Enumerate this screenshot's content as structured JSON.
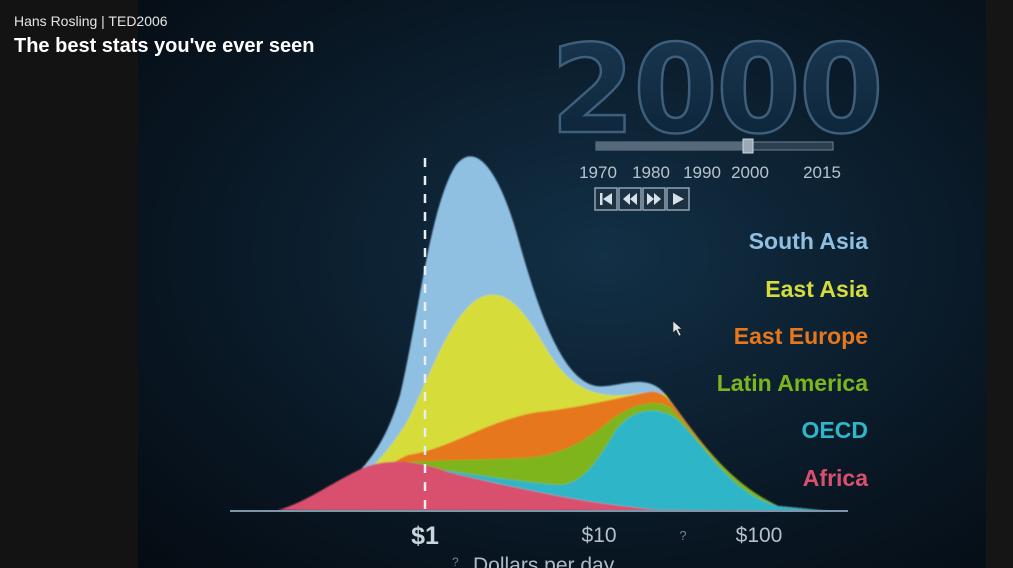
{
  "video": {
    "author_line": "Hans Rosling | TED2006",
    "title": "The best stats you've ever seen"
  },
  "chart": {
    "year": "2000",
    "timeline": {
      "ticks": [
        "1970",
        "1980",
        "1990",
        "2000",
        "2015"
      ],
      "current": "2000"
    },
    "controls": [
      "skip-to-start",
      "rewind",
      "fast-forward",
      "play"
    ],
    "legend": [
      {
        "label": "South Asia",
        "color": "#8fc0e2"
      },
      {
        "label": "East Asia",
        "color": "#d6dd3a"
      },
      {
        "label": "East Europe",
        "color": "#e6771c"
      },
      {
        "label": "Latin America",
        "color": "#7fb51c"
      },
      {
        "label": "OECD",
        "color": "#2fb6c8"
      },
      {
        "label": "Africa",
        "color": "#d9506e"
      }
    ],
    "x_axis": {
      "ticks": [
        "$1",
        "$10",
        "?",
        "$100"
      ],
      "label": "Dollars per day",
      "label_prefix": "?"
    }
  },
  "chart_data": {
    "type": "area",
    "title": "2000",
    "xlabel": "Dollars per day",
    "x_scale": "log",
    "x_ticks": [
      "$1",
      "$10",
      "$100"
    ],
    "series": [
      {
        "name": "South Asia",
        "color": "#8fc0e2"
      },
      {
        "name": "East Asia",
        "color": "#d6dd3a"
      },
      {
        "name": "East Europe",
        "color": "#e6771c"
      },
      {
        "name": "Latin America",
        "color": "#7fb51c"
      },
      {
        "name": "OECD",
        "color": "#2fb6c8"
      },
      {
        "name": "Africa",
        "color": "#d9506e"
      }
    ],
    "stacked": true,
    "reference_line_x": "$1"
  }
}
